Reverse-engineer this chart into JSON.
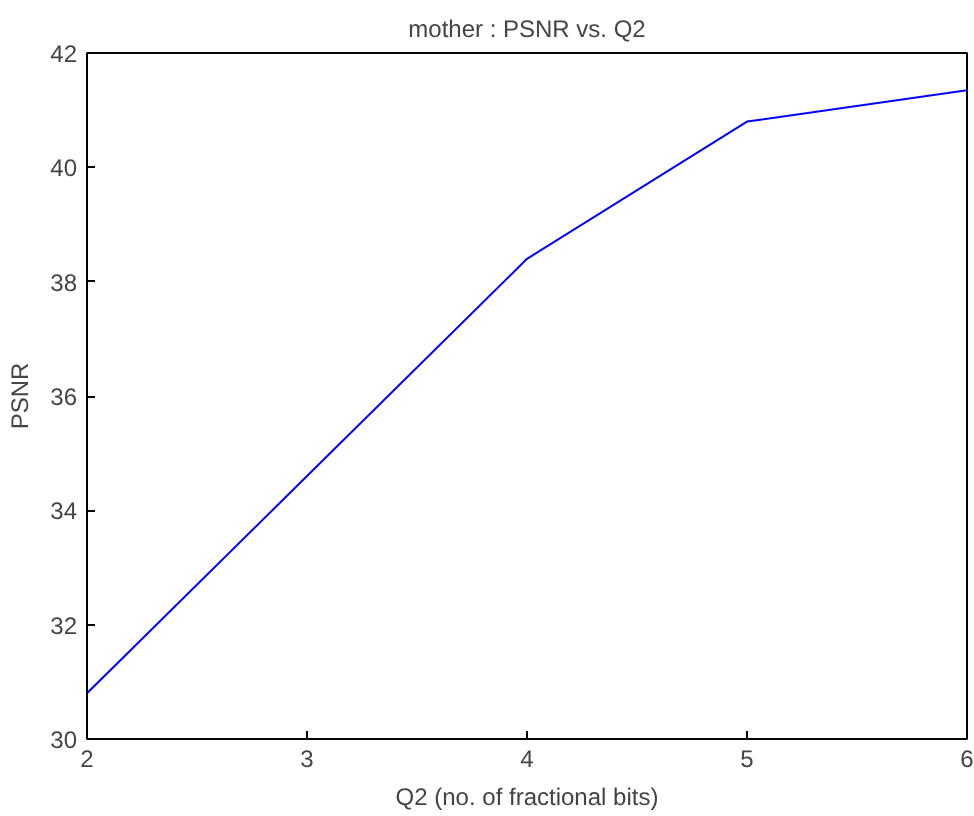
{
  "chart_data": {
    "type": "line",
    "title": "mother : PSNR vs. Q2",
    "xlabel": "Q2 (no. of fractional bits)",
    "ylabel": "PSNR",
    "x": [
      2,
      3,
      4,
      5,
      6
    ],
    "series": [
      {
        "color": "#0000ff",
        "values": [
          30.8,
          34.6,
          38.4,
          40.8,
          41.35
        ]
      }
    ],
    "xlim": [
      2,
      6
    ],
    "ylim": [
      30,
      42
    ],
    "xticks": [
      2,
      3,
      4,
      5,
      6
    ],
    "yticks": [
      30,
      32,
      34,
      36,
      38,
      40,
      42
    ],
    "grid": false,
    "marker": "none",
    "line_style": "solid"
  }
}
